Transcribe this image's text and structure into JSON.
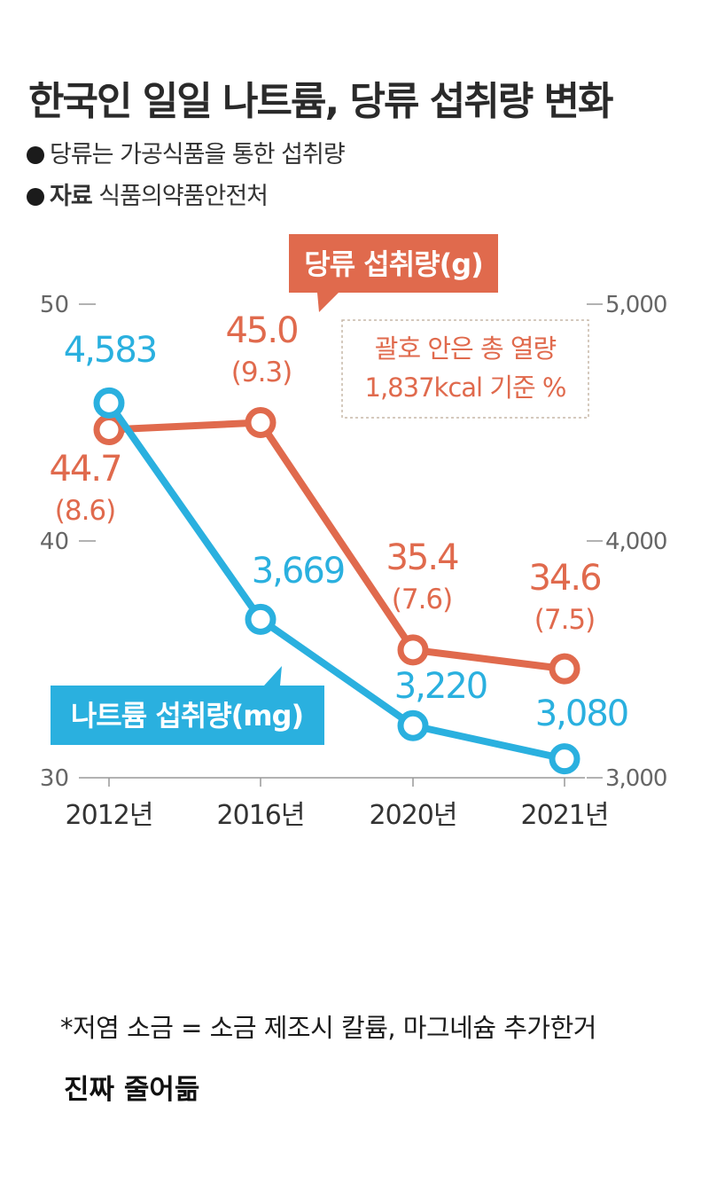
{
  "header": {
    "title": "한국인 일일 나트륨, 당류 섭취량 변화",
    "subtitle_1": "당류는 가공식품을 통한 섭취량",
    "source_label": "자료",
    "source_text": "식품의약품안전처"
  },
  "chart_data": {
    "type": "line",
    "categories": [
      "2012년",
      "2016년",
      "2020년",
      "2021년"
    ],
    "series": [
      {
        "name": "당류 섭취량(g)",
        "axis": "left",
        "color": "#e06a4d",
        "values": [
          44.7,
          45.0,
          35.4,
          34.6
        ],
        "value_labels": [
          "44.7",
          "45.0",
          "35.4",
          "34.6"
        ],
        "percent_labels": [
          "(8.6)",
          "(9.3)",
          "(7.6)",
          "(7.5)"
        ]
      },
      {
        "name": "나트륨 섭취량(mg)",
        "axis": "right",
        "color": "#2ab0df",
        "values": [
          4583,
          3669,
          3220,
          3080
        ],
        "value_labels": [
          "4,583",
          "3,669",
          "3,220",
          "3,080"
        ]
      }
    ],
    "left_axis": {
      "range": [
        30,
        50
      ],
      "ticks": [
        "30",
        "40",
        "50"
      ]
    },
    "right_axis": {
      "range": [
        3000,
        5000
      ],
      "ticks": [
        "3,000",
        "4,000",
        "5,000"
      ]
    },
    "annotation": {
      "line1": "괄호 안은 총 열량",
      "line2": "1,837kcal 기준 %"
    }
  },
  "footer": {
    "note": "*저염 소금 = 소금 제조시 칼륨, 마그네슘 추가한거",
    "caption": "진짜 줄어듦"
  }
}
